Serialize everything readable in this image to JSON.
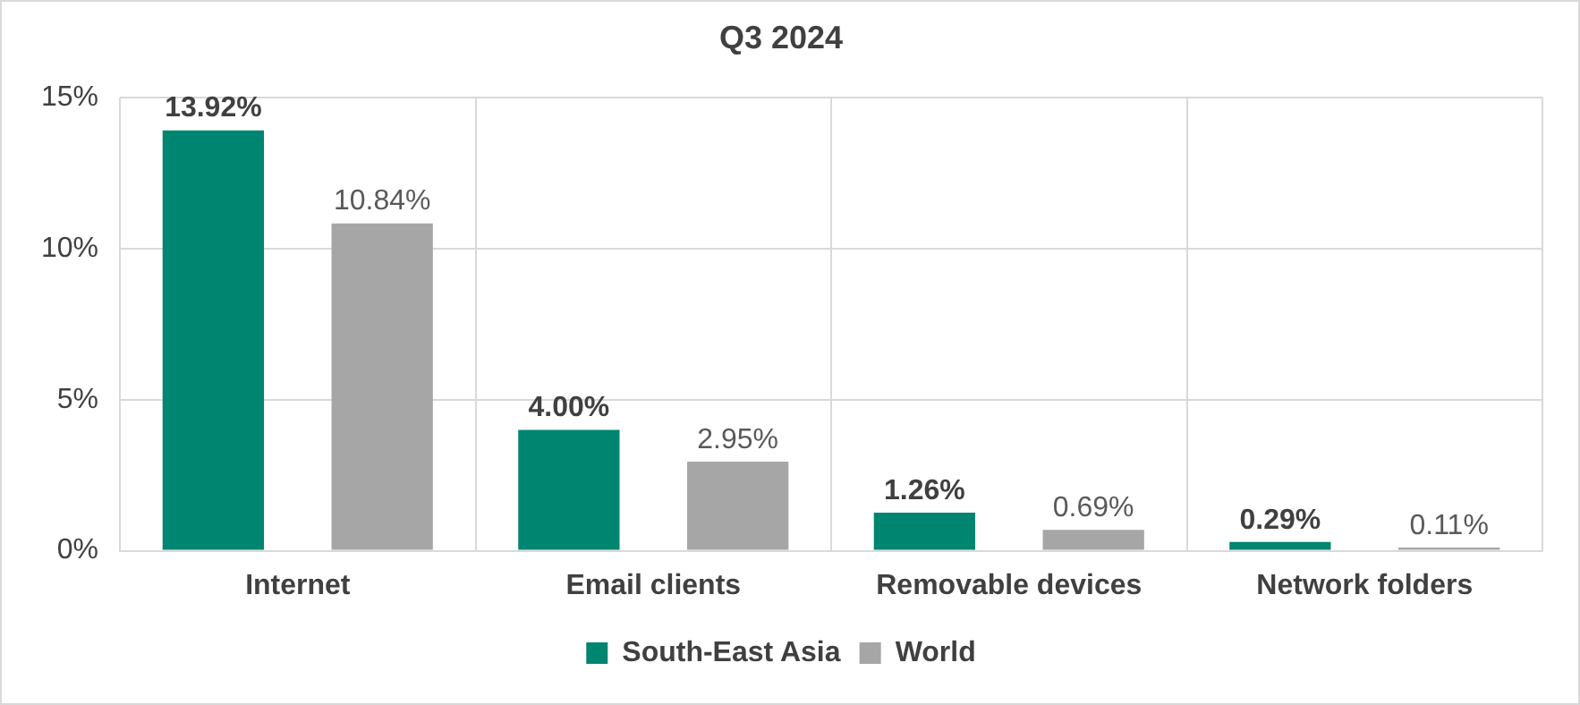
{
  "chart_data": {
    "type": "bar",
    "title": "Q3 2024",
    "categories": [
      "Internet",
      "Email clients",
      "Removable devices",
      "Network folders"
    ],
    "series": [
      {
        "name": "South-East Asia",
        "color": "#008570",
        "values": [
          13.92,
          4.0,
          1.26,
          0.29
        ],
        "value_labels": [
          "13.92%",
          "4.00%",
          "1.26%",
          "0.29%"
        ]
      },
      {
        "name": "World",
        "color": "#a6a6a6",
        "values": [
          10.84,
          2.95,
          0.69,
          0.11
        ],
        "value_labels": [
          "10.84%",
          "2.95%",
          "0.69%",
          "0.11%"
        ]
      }
    ],
    "ylim": [
      0,
      15
    ],
    "yticks": [
      {
        "value": 0,
        "label": "0%"
      },
      {
        "value": 5,
        "label": "5%"
      },
      {
        "value": 10,
        "label": "10%"
      },
      {
        "value": 15,
        "label": "15%"
      }
    ],
    "grid": true,
    "legend": "bottom"
  }
}
